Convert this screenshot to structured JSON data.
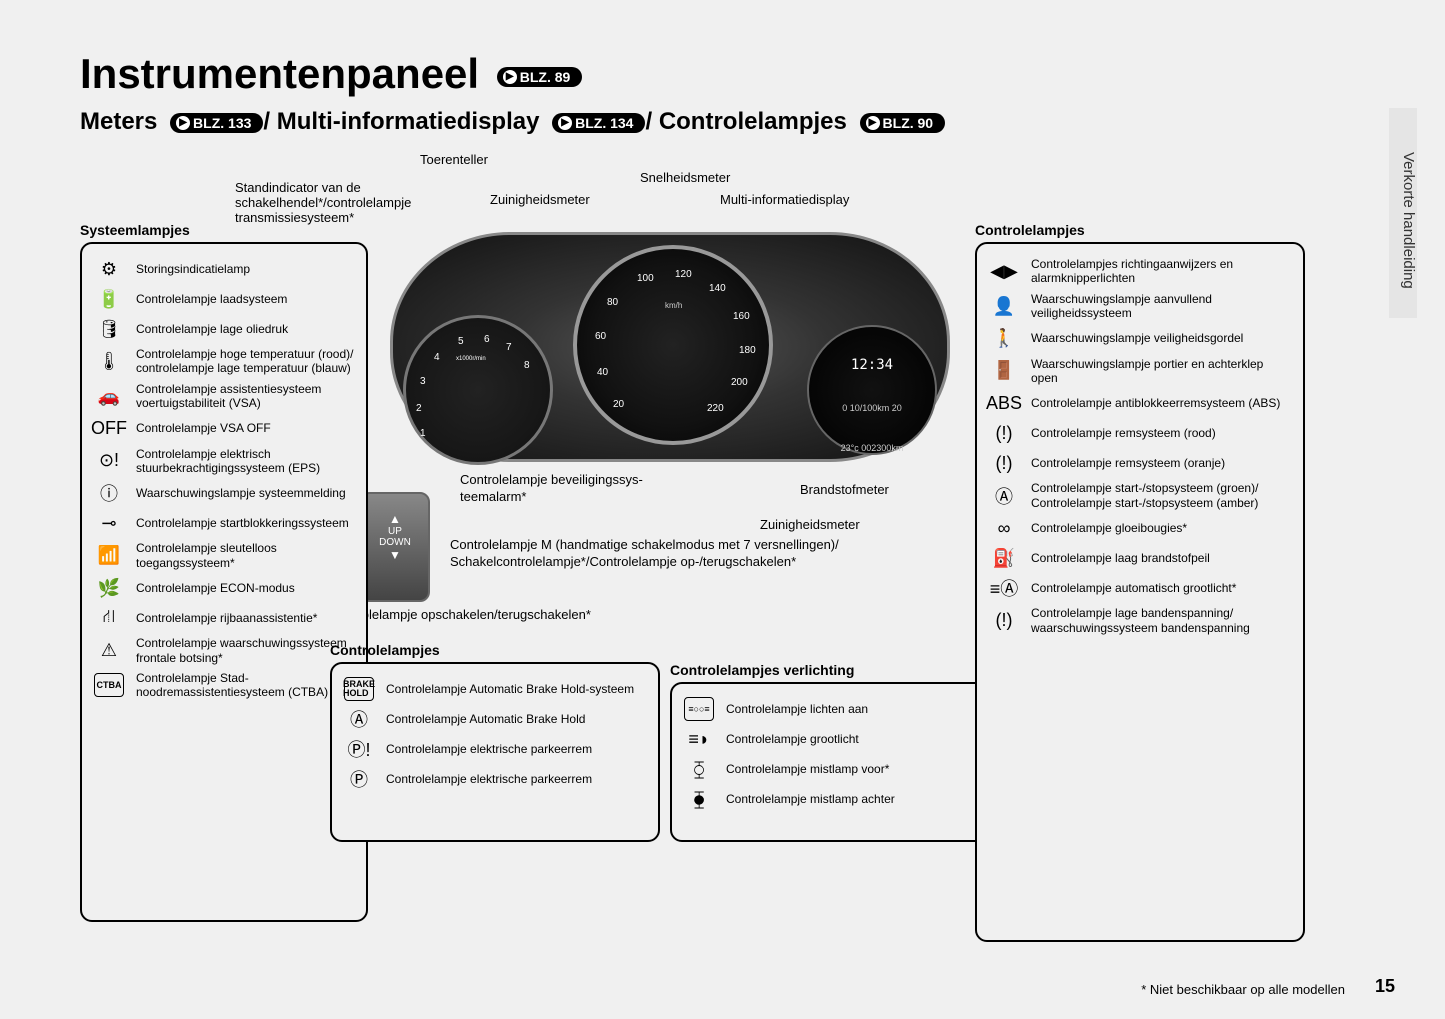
{
  "title": "Instrumentenpaneel",
  "title_ref": "BLZ. 89",
  "subtitle_parts": [
    {
      "text": "Meters",
      "ref": "BLZ. 133"
    },
    {
      "text": "Multi-informatiedisplay",
      "ref": "BLZ. 134"
    },
    {
      "text": "Controlelampjes",
      "ref": "BLZ. 90"
    }
  ],
  "side_tab": "Verkorte handleiding",
  "page_number": "15",
  "footnote": "* Niet beschikbaar op alle modellen",
  "cluster": {
    "time": "12:34",
    "odo_top": "0    10/100km 20",
    "odo_bottom": "23°c   002300km",
    "kmh": "km/h",
    "speed_marks": [
      "20",
      "40",
      "60",
      "80",
      "100",
      "120",
      "140",
      "160",
      "180",
      "200",
      "220"
    ],
    "rpm_marks": [
      "1",
      "2",
      "3",
      "4",
      "5",
      "6",
      "7",
      "8"
    ],
    "rpm_unit": "x1000r/min"
  },
  "callouts": {
    "toerenteller": "Toerenteller",
    "standindicator": "Standindicator van de schakelhendel*/controlelampje transmissiesysteem*",
    "zuinigheidsmeter": "Zuinigheidsmeter",
    "snelheidsmeter": "Snelheidsmeter",
    "multi_info": "Multi-informatiedisplay",
    "beveiliging": "Controlelampje beveiligingssys-teemalarm*",
    "brandstof": "Brandstofmeter",
    "zuinig2": "Zuinigheidsmeter",
    "mode_m": "Controlelampje M (handmatige schakelmodus met 7 versnellingen)/ Schakelcontrolelampje*/Controlelampje op-/terugschakelen*",
    "opschakelen": "Controlelampje opschakelen/terugschakelen*",
    "shifter_text": "UP\nDOWN"
  },
  "panels": {
    "system": {
      "title": "Systeemlampjes",
      "items": [
        {
          "icon": "⚙",
          "label": "Storingsindicatielamp"
        },
        {
          "icon": "🔋",
          "label": "Controlelampje laadsysteem"
        },
        {
          "icon": "🛢",
          "label": "Controlelampje lage oliedruk"
        },
        {
          "icon": "🌡",
          "label": "Controlelampje hoge temperatuur (rood)/ controlelampje lage temperatuur (blauw)"
        },
        {
          "icon": "🚗",
          "label": "Controlelampje assistentiesysteem voertuigstabiliteit (VSA)"
        },
        {
          "icon": "OFF",
          "label": "Controlelampje VSA OFF"
        },
        {
          "icon": "⊙!",
          "label": "Controlelampje elektrisch stuurbekrachtigingssysteem (EPS)"
        },
        {
          "icon": "ⓘ",
          "label": "Waarschuwingslampje systeemmelding"
        },
        {
          "icon": "⊸",
          "label": "Controlelampje startblokkeringssysteem"
        },
        {
          "icon": "📶",
          "label": "Controlelampje sleutelloos toegangssysteem*"
        },
        {
          "icon": "🌿",
          "label": "Controlelampje ECON-modus"
        },
        {
          "icon": "⛙",
          "label": "Controlelampje rijbaanassistentie*"
        },
        {
          "icon": "⚠",
          "label": "Controlelampje waarschuwingssysteem frontale botsing*"
        },
        {
          "icon": "CTBA",
          "label": "Controlelampje Stad-noodremassistentiesysteem (CTBA)"
        }
      ]
    },
    "controle_mid": {
      "title": "Controlelampjes",
      "items": [
        {
          "icon": "BRAKE HOLD",
          "label": "Controlelampje Automatic Brake Hold-systeem"
        },
        {
          "icon": "Ⓐ",
          "label": "Controlelampje Automatic Brake Hold"
        },
        {
          "icon": "Ⓟ!",
          "label": "Controlelampje elektrische parkeerrem"
        },
        {
          "icon": "Ⓟ",
          "label": "Controlelampje elektrische parkeerrem"
        }
      ]
    },
    "verlichting": {
      "title": "Controlelampjes verlichting",
      "items": [
        {
          "icon": "≡○○≡",
          "label": "Controlelampje lichten aan"
        },
        {
          "icon": "≡◗",
          "label": "Controlelampje grootlicht"
        },
        {
          "icon": "⧲",
          "label": "Controlelampje mistlamp voor*"
        },
        {
          "icon": "⧳",
          "label": "Controlelampje mistlamp achter"
        }
      ]
    },
    "controle_right": {
      "title": "Controlelampjes",
      "items": [
        {
          "icon": "◀▶",
          "label": "Controlelampjes richtingaanwijzers en alarmknipperlichten"
        },
        {
          "icon": "👤",
          "label": "Waarschuwingslampje aanvullend veiligheidssysteem"
        },
        {
          "icon": "🚶",
          "label": "Waarschuwingslampje veiligheidsgordel"
        },
        {
          "icon": "🚪",
          "label": "Waarschuwingslampje portier en achterklep open"
        },
        {
          "icon": "ABS",
          "label": "Controlelampje antiblokkeerremsysteem (ABS)"
        },
        {
          "icon": "(!)",
          "label": "Controlelampje remsysteem (rood)"
        },
        {
          "icon": "(!)",
          "label": "Controlelampje remsysteem (oranje)"
        },
        {
          "icon": "Ⓐ",
          "label": "Controlelampje start-/stopsysteem (groen)/ Controlelampje start-/stopsysteem (amber)"
        },
        {
          "icon": "∞",
          "label": "Controlelampje gloeibougies*"
        },
        {
          "icon": "⛽",
          "label": "Controlelampje laag brandstofpeil"
        },
        {
          "icon": "≡Ⓐ",
          "label": "Controlelampje automatisch grootlicht*"
        },
        {
          "icon": "(!)",
          "label": "Controlelampje lage bandenspanning/ waarschuwingssysteem bandenspanning"
        }
      ]
    }
  }
}
